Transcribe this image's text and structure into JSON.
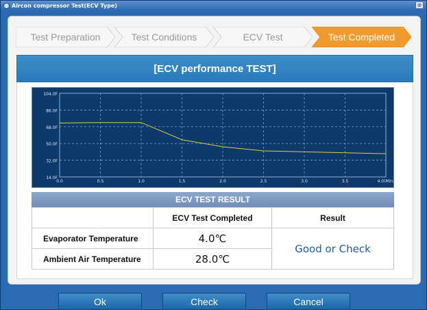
{
  "window": {
    "title": "Aircon compressor Test(ECV Type)",
    "close_glyph": "⊗"
  },
  "steps": [
    {
      "label": "Test Preparation",
      "active": false
    },
    {
      "label": "Test Conditions",
      "active": false
    },
    {
      "label": "ECV Test",
      "active": false
    },
    {
      "label": "Test Completed",
      "active": true
    }
  ],
  "banner": {
    "title": "[ECV performance TEST]"
  },
  "chart_data": {
    "type": "line",
    "x_tick_labels": [
      "0.0",
      "0.5",
      "1.0",
      "1.5",
      "2.0",
      "2.5",
      "3.0",
      "3.5",
      "4.0(Min)"
    ],
    "y_tick_labels": [
      "104.0F",
      "86.0F",
      "68.0F",
      "50.0F",
      "32.0F",
      "14.0F"
    ],
    "xlim": [
      0,
      4
    ],
    "ylim": [
      14,
      104
    ],
    "grid": true,
    "series": [
      {
        "color": "#d9cf3a",
        "x": [
          0,
          0.5,
          1.0,
          1.5,
          2.0,
          2.5,
          3.0,
          3.5,
          4.0
        ],
        "y": [
          72,
          72.5,
          72.5,
          54,
          46.5,
          42,
          41,
          40,
          39
        ]
      }
    ]
  },
  "result": {
    "title": "ECV TEST RESULT",
    "headers": [
      "",
      "ECV Test Completed",
      "Result"
    ],
    "rows": [
      {
        "label": "Evaporator Temperature",
        "value": "4.0℃"
      },
      {
        "label": "Ambient Air Temperature",
        "value": "28.0℃"
      }
    ],
    "result_text": "Good or Check"
  },
  "buttons": {
    "ok": "Ok",
    "check": "Check",
    "cancel": "Cancel"
  },
  "colors": {
    "accent_orange": "#f39a2c",
    "banner_blue": "#2e80c0",
    "chart_bg": "#0d3a6b",
    "line": "#d9cf3a"
  }
}
